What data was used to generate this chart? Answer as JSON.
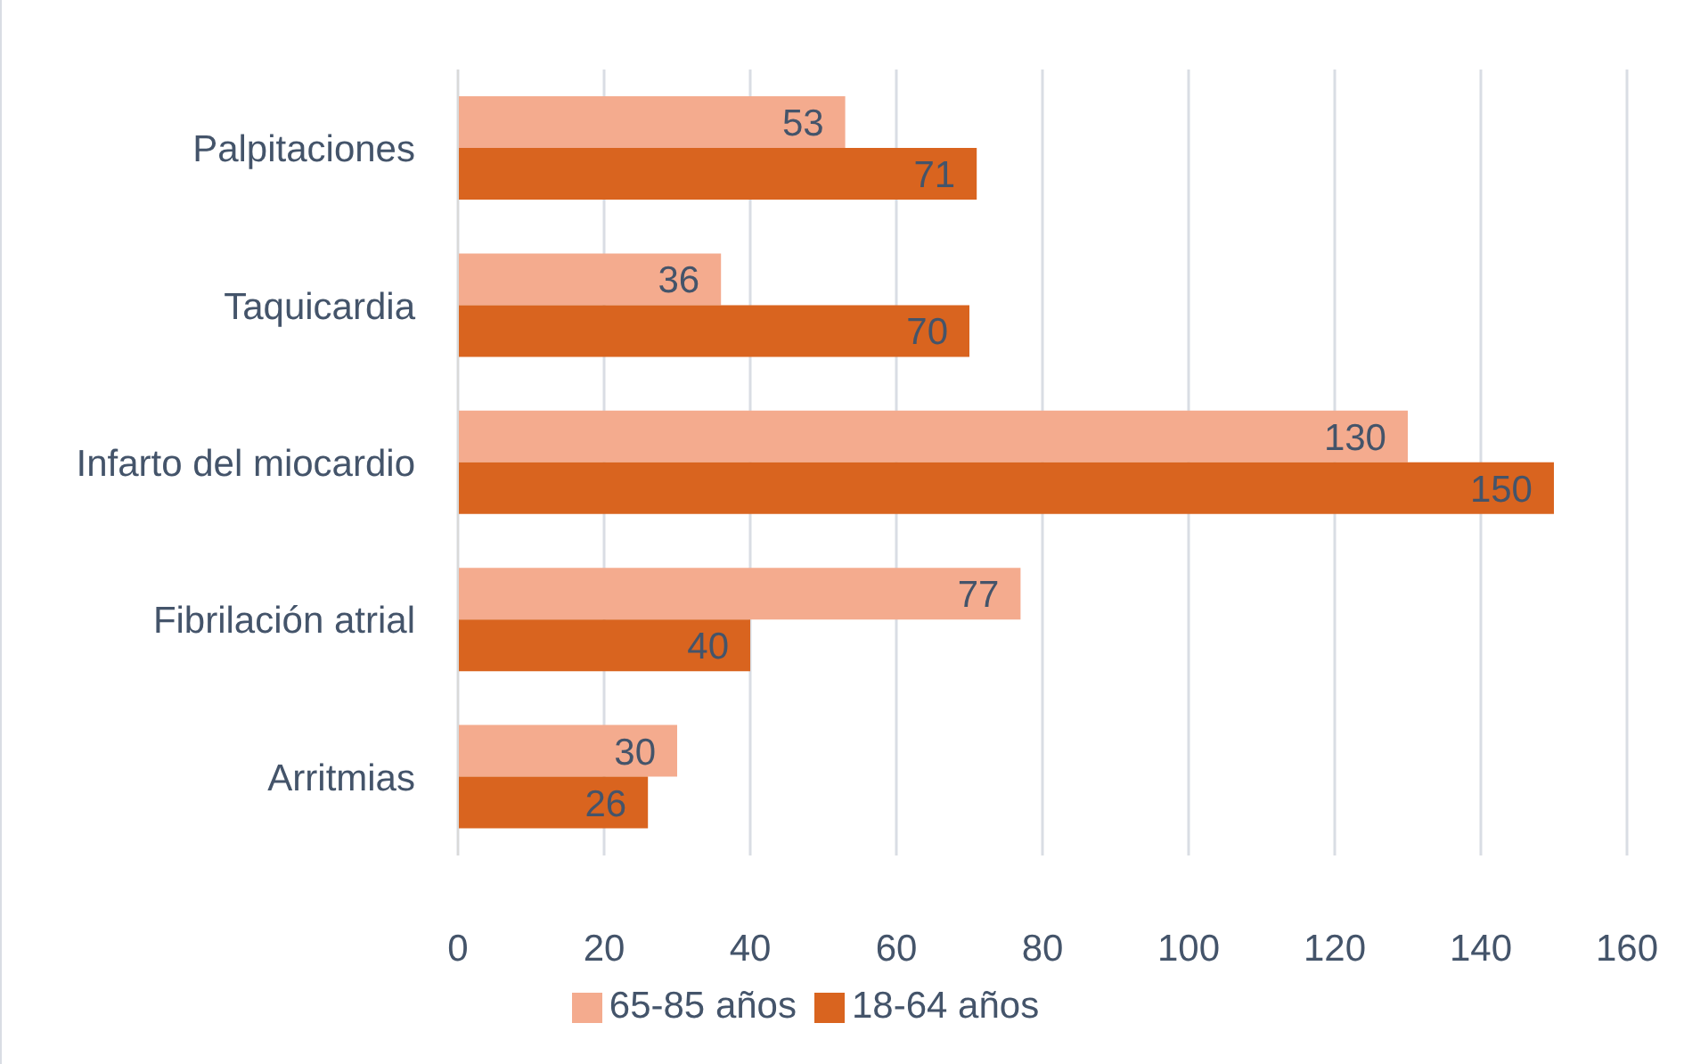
{
  "chart_data": {
    "type": "bar",
    "orientation": "horizontal",
    "categories": [
      "Palpitaciones",
      "Taquicardia",
      "Infarto del miocardio",
      "Fibrilación atrial",
      "Arritmias"
    ],
    "series": [
      {
        "name": "65-85 años",
        "color": "#f4ab8e",
        "values": [
          53,
          36,
          130,
          77,
          30
        ]
      },
      {
        "name": "18-64 años",
        "color": "#d9641f",
        "values": [
          71,
          70,
          150,
          40,
          26
        ]
      }
    ],
    "xlim": [
      0,
      160
    ],
    "xticks": [
      0,
      20,
      40,
      60,
      80,
      100,
      120,
      140,
      160
    ],
    "grid": "x",
    "legend": "bottom",
    "data_labels": true
  }
}
